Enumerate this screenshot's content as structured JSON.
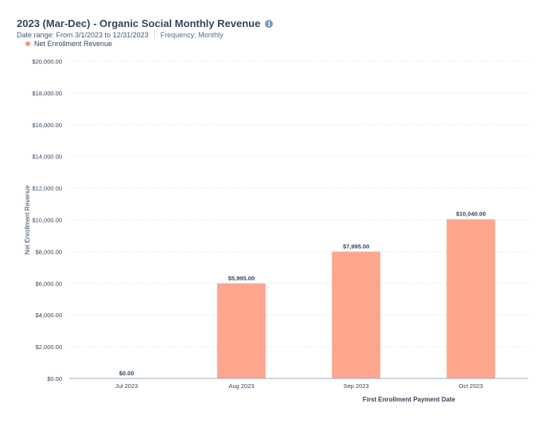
{
  "header": {
    "title": "2023 (Mar-Dec) - Organic Social Monthly Revenue",
    "info_icon": "info-icon",
    "date_range": "Date range: From 3/1/2023 to 12/31/2023",
    "frequency": "Frequency: Monthly"
  },
  "chart_data": {
    "type": "bar",
    "categories": [
      "Jul 2023",
      "Aug 2023",
      "Sep 2023",
      "Oct 2023"
    ],
    "series": [
      {
        "name": "Net Enrollment Revenue",
        "values": [
          0,
          5995,
          7995,
          10040
        ],
        "color": "#ffa68f"
      }
    ],
    "data_labels": [
      "$0.00",
      "$5,995.00",
      "$7,995.00",
      "$10,040.00"
    ],
    "y_ticks": [
      "$0.00",
      "$2,000.00",
      "$4,000.00",
      "$6,000.00",
      "$8,000.00",
      "$10,000.00",
      "$12,000.00",
      "$14,000.00",
      "$16,000.00",
      "$18,000.00",
      "$20,000.00"
    ],
    "ylim": [
      0,
      20000
    ],
    "xlabel": "First Enrollment Payment Date",
    "ylabel": "Net Enrollment Revenue",
    "grid": true,
    "legend_position": "top-left"
  }
}
